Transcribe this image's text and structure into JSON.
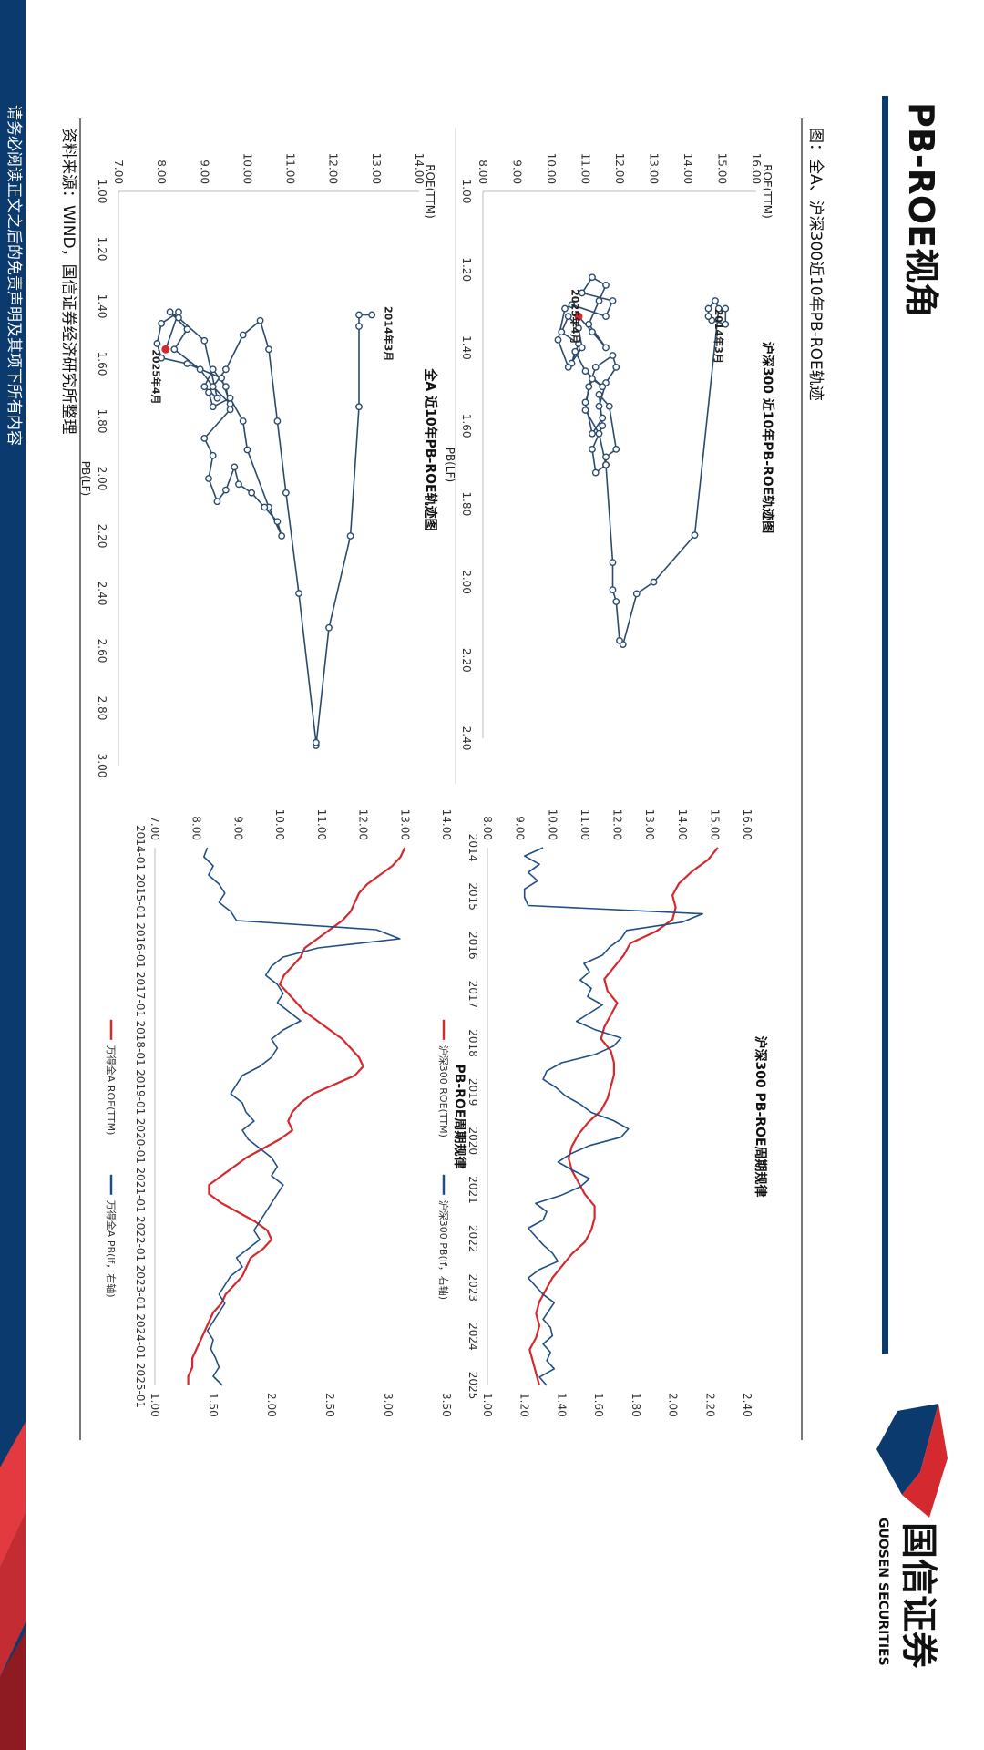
{
  "slide": {
    "title": "PB-ROE视角",
    "figure_caption": "图：全A、沪深300近10年PB-ROE轨迹",
    "source": "资料来源：WIND，国信证券经济研究所整理",
    "disclaimer": "请务必阅读正文之后的免责声明及其项下所有内容",
    "logo_cn": "国信证券",
    "logo_en": "GUOSEN SECURITIES",
    "colors": {
      "navy": "#0b3a6e",
      "red": "#d42a2f",
      "line_blue": "#1f4e84",
      "point": "#2b4a6b"
    }
  },
  "chart_data": [
    {
      "id": "hs300_trajectory",
      "type": "scatter",
      "title": "沪深300 近10年PB-ROE轨迹图",
      "xlabel": "PB(LF)",
      "ylabel": "ROE(TTM)",
      "xlim": [
        1.0,
        2.4
      ],
      "ylim": [
        8.0,
        16.0
      ],
      "xticks": [
        "1.00",
        "1.20",
        "1.40",
        "1.60",
        "1.80",
        "2.00",
        "2.20",
        "2.40"
      ],
      "yticks": [
        "8.00",
        "9.00",
        "10.00",
        "11.00",
        "12.00",
        "13.00",
        "14.00",
        "15.00",
        "16.00"
      ],
      "annotations": [
        {
          "text": "2014年3月",
          "x": 1.3,
          "y": 14.8
        },
        {
          "text": "2025年4月",
          "x": 1.25,
          "y": 10.6
        }
      ],
      "points": [
        [
          1.3,
          15.1
        ],
        [
          1.34,
          15.1
        ],
        [
          1.33,
          14.7
        ],
        [
          1.32,
          14.6
        ],
        [
          1.3,
          14.6
        ],
        [
          1.28,
          14.8
        ],
        [
          1.3,
          14.9
        ],
        [
          1.88,
          14.2
        ],
        [
          2.0,
          13.0
        ],
        [
          2.03,
          12.5
        ],
        [
          2.16,
          12.1
        ],
        [
          2.15,
          12.0
        ],
        [
          2.05,
          11.9
        ],
        [
          2.02,
          11.8
        ],
        [
          1.95,
          11.8
        ],
        [
          1.7,
          11.6
        ],
        [
          1.68,
          11.6
        ],
        [
          1.66,
          11.9
        ],
        [
          1.55,
          11.7
        ],
        [
          1.52,
          11.4
        ],
        [
          1.6,
          11.5
        ],
        [
          1.66,
          11.2
        ],
        [
          1.72,
          11.3
        ],
        [
          1.7,
          11.6
        ],
        [
          1.62,
          11.4
        ],
        [
          1.56,
          11.0
        ],
        [
          1.5,
          11.1
        ],
        [
          1.45,
          11.3
        ],
        [
          1.42,
          11.8
        ],
        [
          1.45,
          11.9
        ],
        [
          1.49,
          11.6
        ],
        [
          1.55,
          11.4
        ],
        [
          1.58,
          11.5
        ],
        [
          1.62,
          11.2
        ],
        [
          1.54,
          11.0
        ],
        [
          1.48,
          11.2
        ],
        [
          1.5,
          11.5
        ],
        [
          1.46,
          11.0
        ],
        [
          1.41,
          10.7
        ],
        [
          1.44,
          10.6
        ],
        [
          1.39,
          10.8
        ],
        [
          1.36,
          10.3
        ],
        [
          1.32,
          10.5
        ],
        [
          1.35,
          10.8
        ],
        [
          1.4,
          10.9
        ],
        [
          1.45,
          10.5
        ],
        [
          1.38,
          10.2
        ],
        [
          1.3,
          10.4
        ],
        [
          1.29,
          10.6
        ],
        [
          1.32,
          11.6
        ],
        [
          1.28,
          11.8
        ],
        [
          1.26,
          10.9
        ],
        [
          1.22,
          11.2
        ],
        [
          1.24,
          11.6
        ],
        [
          1.28,
          11.4
        ],
        [
          1.34,
          11.1
        ],
        [
          1.4,
          11.6
        ],
        [
          1.36,
          11.2
        ],
        [
          1.32,
          10.8
        ]
      ],
      "current": [
        1.32,
        10.8
      ]
    },
    {
      "id": "allA_trajectory",
      "type": "scatter",
      "title": "全A 近10年PB-ROE轨迹图",
      "xlabel": "PB(LF)",
      "ylabel": "ROE(TTM)",
      "xlim": [
        1.0,
        3.0
      ],
      "ylim": [
        7.0,
        14.0
      ],
      "xticks": [
        "1.00",
        "1.20",
        "1.40",
        "1.60",
        "1.80",
        "2.00",
        "2.20",
        "2.40",
        "2.60",
        "2.80",
        "3.00"
      ],
      "yticks": [
        "7.00",
        "8.00",
        "9.00",
        "10.00",
        "11.00",
        "12.00",
        "13.00",
        "14.00"
      ],
      "annotations": [
        {
          "text": "2014年3月",
          "x": 1.4,
          "y": 13.2
        },
        {
          "text": "2025年4月",
          "x": 1.55,
          "y": 7.8
        }
      ],
      "points": [
        [
          1.43,
          12.9
        ],
        [
          1.43,
          12.6
        ],
        [
          1.47,
          12.6
        ],
        [
          1.75,
          12.6
        ],
        [
          2.2,
          12.4
        ],
        [
          2.52,
          11.9
        ],
        [
          2.93,
          11.6
        ],
        [
          2.92,
          11.6
        ],
        [
          2.4,
          11.2
        ],
        [
          2.05,
          10.9
        ],
        [
          1.8,
          10.7
        ],
        [
          1.55,
          10.5
        ],
        [
          1.45,
          10.3
        ],
        [
          1.5,
          9.9
        ],
        [
          1.62,
          9.5
        ],
        [
          1.7,
          9.1
        ],
        [
          1.75,
          9.2
        ],
        [
          1.72,
          9.6
        ],
        [
          1.8,
          9.9
        ],
        [
          1.9,
          10.0
        ],
        [
          2.1,
          10.5
        ],
        [
          2.2,
          10.8
        ],
        [
          2.15,
          10.7
        ],
        [
          2.1,
          10.4
        ],
        [
          2.05,
          10.1
        ],
        [
          2.02,
          9.8
        ],
        [
          1.96,
          9.7
        ],
        [
          2.04,
          9.5
        ],
        [
          2.08,
          9.3
        ],
        [
          2.0,
          9.1
        ],
        [
          1.92,
          9.2
        ],
        [
          1.86,
          9.0
        ],
        [
          1.76,
          9.6
        ],
        [
          1.68,
          9.5
        ],
        [
          1.62,
          9.2
        ],
        [
          1.68,
          9.0
        ],
        [
          1.72,
          9.3
        ],
        [
          1.52,
          9.0
        ],
        [
          1.44,
          8.4
        ],
        [
          1.42,
          8.2
        ],
        [
          1.48,
          8.6
        ],
        [
          1.55,
          8.3
        ],
        [
          1.62,
          8.9
        ],
        [
          1.68,
          9.2
        ],
        [
          1.74,
          9.6
        ],
        [
          1.65,
          9.4
        ],
        [
          1.6,
          8.6
        ],
        [
          1.58,
          8.0
        ],
        [
          1.53,
          7.9
        ],
        [
          1.46,
          8.0
        ],
        [
          1.42,
          8.4
        ],
        [
          1.55,
          8.1
        ]
      ],
      "current": [
        1.55,
        8.1
      ]
    },
    {
      "id": "hs300_cycle",
      "type": "line",
      "title": "沪深300 PB-ROE周期规律",
      "x_start": 2014.17,
      "x_end": 2025.3,
      "xticks": [
        "2014",
        "2015",
        "2016",
        "2017",
        "2018",
        "2019",
        "2020",
        "2021",
        "2022",
        "2023",
        "2024",
        "2025"
      ],
      "y_left_lim": [
        8.0,
        16.0
      ],
      "y_left_ticks": [
        "8.00",
        "9.00",
        "10.00",
        "11.00",
        "12.00",
        "13.00",
        "14.00",
        "15.00",
        "16.00"
      ],
      "y_right_lim": [
        1.0,
        2.4
      ],
      "y_right_ticks": [
        "1.00",
        "1.20",
        "1.40",
        "1.60",
        "1.80",
        "2.00",
        "2.20",
        "2.40"
      ],
      "series": [
        {
          "name": "沪深300 ROE(TTM)",
          "axis": "left",
          "color": "#d42a2f",
          "values": [
            15.1,
            14.8,
            14.3,
            13.9,
            13.7,
            13.8,
            13.7,
            13.2,
            12.4,
            12.2,
            11.9,
            11.6,
            11.7,
            12.0,
            11.8,
            11.6,
            11.5,
            11.8,
            11.9,
            11.9,
            11.8,
            11.7,
            11.5,
            11.1,
            10.8,
            10.6,
            10.5,
            10.6,
            10.8,
            11.0,
            11.3,
            11.3,
            11.2,
            11.0,
            10.6,
            10.3,
            10.0,
            9.8,
            9.6,
            9.5,
            9.6,
            9.5,
            9.3,
            9.4,
            9.5,
            9.6
          ]
        },
        {
          "name": "沪深300 PB(lf，右轴)",
          "axis": "right",
          "color": "#1f4e84",
          "values": [
            1.3,
            1.2,
            1.28,
            1.22,
            1.27,
            1.2,
            1.2,
            1.22,
            2.16,
            2.05,
            1.75,
            1.72,
            1.66,
            1.62,
            1.52,
            1.55,
            1.5,
            1.56,
            1.54,
            1.62,
            1.55,
            1.48,
            1.58,
            1.72,
            1.68,
            1.58,
            1.4,
            1.32,
            1.3,
            1.37,
            1.42,
            1.5,
            1.56,
            1.68,
            1.76,
            1.72,
            1.55,
            1.45,
            1.38,
            1.46,
            1.55,
            1.5,
            1.4,
            1.26,
            1.32,
            1.3,
            1.22,
            1.26,
            1.3,
            1.35,
            1.38,
            1.28,
            1.22,
            1.26,
            1.3,
            1.36,
            1.33,
            1.3,
            1.34,
            1.35,
            1.3,
            1.34,
            1.32,
            1.36,
            1.28,
            1.32
          ]
        }
      ]
    },
    {
      "id": "allA_cycle",
      "type": "line",
      "title": "PB-ROE周期规律",
      "x_start": 2014.17,
      "x_end": 2025.3,
      "xticks": [
        "2014-01",
        "2015-01",
        "2016-01",
        "2017-01",
        "2018-01",
        "2019-01",
        "2020-01",
        "2021-01",
        "2022-01",
        "2023-01",
        "2024-01",
        "2025-01"
      ],
      "y_left_lim": [
        7.0,
        14.0
      ],
      "y_left_ticks": [
        "7.00",
        "8.00",
        "9.00",
        "10.00",
        "11.00",
        "12.00",
        "13.00",
        "14.00"
      ],
      "y_right_lim": [
        1.0,
        3.5
      ],
      "y_right_ticks": [
        "1.00",
        "1.50",
        "2.00",
        "2.50",
        "3.00",
        "3.50"
      ],
      "series": [
        {
          "name": "万得全A ROE(TTM)",
          "axis": "left",
          "color": "#d42a2f",
          "values": [
            13.0,
            12.9,
            12.7,
            12.4,
            12.1,
            11.9,
            11.8,
            11.7,
            11.5,
            11.2,
            10.9,
            10.6,
            10.5,
            10.3,
            10.1,
            10.0,
            10.2,
            10.4,
            10.6,
            10.9,
            11.2,
            11.5,
            11.7,
            11.9,
            12.0,
            11.8,
            11.3,
            10.8,
            10.5,
            10.3,
            10.2,
            10.3,
            10.0,
            9.6,
            9.2,
            8.9,
            8.6,
            8.3,
            8.3,
            8.6,
            9.0,
            9.4,
            9.7,
            9.8,
            9.6,
            9.3,
            9.2,
            9.1,
            8.9,
            8.7,
            8.6,
            8.4,
            8.3,
            8.2,
            8.1,
            8.0,
            7.9,
            7.9,
            7.8,
            7.8
          ]
        },
        {
          "name": "万得全A PB(lf，右轴)",
          "axis": "right",
          "color": "#1f4e84",
          "values": [
            1.45,
            1.42,
            1.5,
            1.46,
            1.55,
            1.6,
            1.55,
            1.65,
            1.7,
            2.9,
            3.1,
            2.4,
            2.1,
            2.0,
            1.95,
            2.05,
            2.1,
            2.05,
            2.15,
            2.25,
            2.1,
            2.0,
            2.05,
            2.0,
            1.9,
            1.75,
            1.7,
            1.65,
            1.75,
            1.78,
            1.85,
            1.75,
            1.8,
            1.9,
            2.0,
            2.05,
            2.0,
            2.1,
            2.05,
            2.0,
            1.95,
            1.9,
            1.85,
            1.9,
            1.8,
            1.7,
            1.75,
            1.65,
            1.6,
            1.55,
            1.6,
            1.55,
            1.5,
            1.45,
            1.5,
            1.48,
            1.52,
            1.55,
            1.5,
            1.58
          ]
        }
      ]
    }
  ]
}
